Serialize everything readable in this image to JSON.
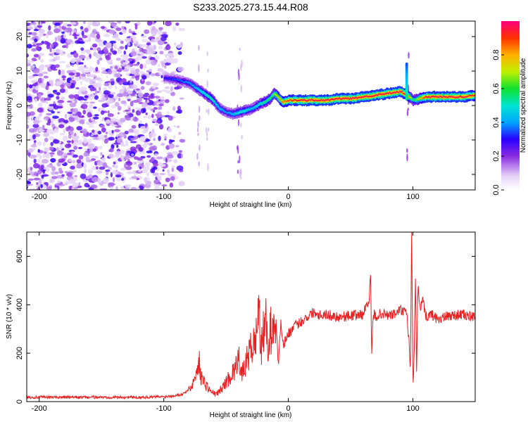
{
  "chart_data": [
    {
      "type": "heatmap",
      "title": "S233.2025.273.15.44.R08",
      "xlabel": "Height of straight line (km)",
      "ylabel": "Frequency (Hz)",
      "xlim": [
        -210,
        150
      ],
      "ylim": [
        -24.5,
        24.5
      ],
      "xticks": [
        -200,
        -100,
        0,
        100
      ],
      "xtick_labels": [
        "-200",
        "-100",
        "0",
        "100"
      ],
      "yticks": [
        -20,
        -10,
        0,
        10,
        20
      ],
      "ytick_labels": [
        "-20",
        "-10",
        "0",
        "10",
        "20"
      ],
      "colorbar": {
        "label": "Normalized spectral amplitude",
        "range": [
          0,
          1
        ],
        "ticks": [
          0,
          0.2,
          0.4,
          0.6,
          0.8
        ],
        "tick_labels": [
          "0.0",
          "0.2",
          "0.4",
          "0.6",
          "0.8"
        ]
      },
      "ridge": {
        "x": [
          -100,
          -90,
          -80,
          -70,
          -62,
          -55,
          -50,
          -45,
          -40,
          -35,
          -30,
          -25,
          -20,
          -15,
          -12,
          -10,
          -5,
          0,
          10,
          20,
          30,
          40,
          50,
          60,
          70,
          80,
          90,
          95,
          100,
          110,
          120,
          130,
          140,
          150
        ],
        "y": [
          8,
          7.5,
          6.5,
          4,
          2,
          -1,
          -2,
          -2.5,
          -2,
          -1.5,
          -1,
          0,
          1,
          2,
          3.5,
          3,
          1,
          1.5,
          1.5,
          1.5,
          1.5,
          2,
          2,
          2.5,
          3,
          3.5,
          4,
          3,
          1.5,
          2.5,
          2.5,
          2.5,
          2.5,
          3
        ],
        "amplitude": [
          0.3,
          0.35,
          0.4,
          0.5,
          0.55,
          0.45,
          0.4,
          0.45,
          0.5,
          0.5,
          0.45,
          0.5,
          0.55,
          0.6,
          0.65,
          0.75,
          0.85,
          0.9,
          0.95,
          0.95,
          0.95,
          0.95,
          0.95,
          0.95,
          0.95,
          0.95,
          0.95,
          0.9,
          0.55,
          0.95,
          0.95,
          0.95,
          0.95,
          0.9
        ]
      }
    },
    {
      "type": "line",
      "xlabel": "Height of straight line (km)",
      "ylabel": "SNR (10 * v/v)",
      "xlim": [
        -210,
        150
      ],
      "ylim": [
        0,
        700
      ],
      "xticks": [
        -200,
        -100,
        0,
        100
      ],
      "xtick_labels": [
        "-200",
        "-100",
        "0",
        "100"
      ],
      "yticks": [
        0,
        200,
        400,
        600
      ],
      "ytick_labels": [
        "0",
        "200",
        "400",
        "600"
      ],
      "series": [
        {
          "name": "SNR",
          "color": "#e82020",
          "x": [
            -210,
            -180,
            -150,
            -120,
            -100,
            -85,
            -78,
            -74,
            -72,
            -70,
            -66,
            -62,
            -58,
            -54,
            -50,
            -46,
            -42,
            -40,
            -38,
            -34,
            -30,
            -26,
            -24,
            -22,
            -20,
            -18,
            -16,
            -14,
            -12,
            -10,
            -8,
            -6,
            -4,
            -2,
            0,
            5,
            10,
            15,
            20,
            25,
            30,
            40,
            50,
            60,
            65,
            66,
            67,
            68,
            69,
            70,
            75,
            80,
            85,
            90,
            95,
            97,
            98,
            99,
            100,
            101,
            102,
            103,
            104,
            106,
            108,
            110,
            115,
            120,
            130,
            140,
            150
          ],
          "y": [
            18,
            18,
            18,
            18,
            20,
            30,
            60,
            110,
            180,
            100,
            70,
            40,
            30,
            50,
            80,
            110,
            140,
            230,
            100,
            160,
            220,
            250,
            440,
            200,
            290,
            320,
            230,
            300,
            270,
            360,
            140,
            340,
            230,
            260,
            280,
            310,
            330,
            350,
            370,
            360,
            360,
            350,
            355,
            360,
            430,
            520,
            180,
            350,
            360,
            350,
            365,
            355,
            360,
            380,
            360,
            240,
            130,
            700,
            50,
            200,
            520,
            100,
            480,
            380,
            420,
            350,
            360,
            340,
            355,
            360,
            345
          ]
        }
      ]
    }
  ]
}
